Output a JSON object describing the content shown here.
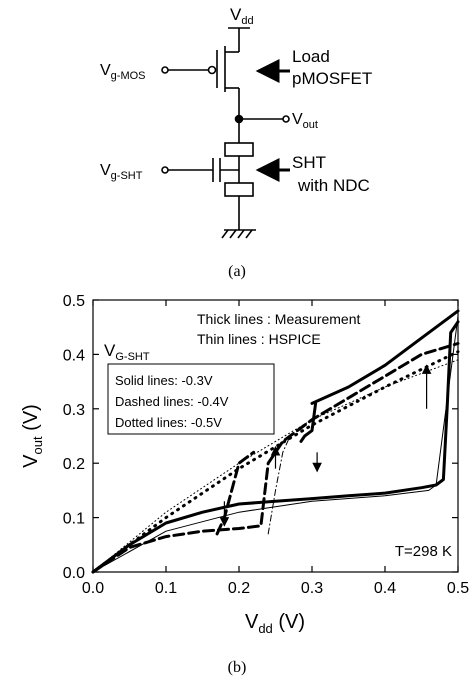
{
  "circuit": {
    "vdd": "V",
    "vdd_sub": "dd",
    "vgmos": "V",
    "vgmos_sub": "g-MOS",
    "load_line1": "Load",
    "load_line2": "pMOSFET",
    "vout": "V",
    "vout_sub": "out",
    "vgsht": "V",
    "vgsht_sub": "g-SHT",
    "sht_line1": "SHT",
    "sht_line2": "with NDC"
  },
  "caption_a": "(a)",
  "caption_b": "(b)",
  "chart_data": {
    "type": "line",
    "xlabel": "V",
    "xlabel_sub": "dd",
    "xlabel_unit": " (V)",
    "ylabel": "V",
    "ylabel_sub": "out",
    "ylabel_unit": " (V)",
    "xlim": [
      0,
      0.5
    ],
    "ylim": [
      0,
      0.5
    ],
    "xticks": [
      "0.0",
      "0.1",
      "0.2",
      "0.3",
      "0.4",
      "0.5"
    ],
    "yticks": [
      "0.0",
      "0.1",
      "0.2",
      "0.3",
      "0.4",
      "0.5"
    ],
    "legend_top_1": "Thick lines : Measurement",
    "legend_top_2": "Thin lines : HSPICE",
    "legend_title": "V",
    "legend_title_sub": "G-SHT",
    "legend_1": "Solid lines: -0.3V",
    "legend_2": "Dashed lines: -0.4V",
    "legend_3": "Dotted lines: -0.5V",
    "temperature": "T=298 K",
    "series": [
      {
        "style": "solid-thick",
        "x": [
          0,
          0.05,
          0.1,
          0.15,
          0.2,
          0.25,
          0.3,
          0.35,
          0.4,
          0.45,
          0.47,
          0.48,
          0.485,
          0.49,
          0.5
        ],
        "y": [
          0,
          0.05,
          0.09,
          0.11,
          0.125,
          0.13,
          0.135,
          0.14,
          0.145,
          0.155,
          0.16,
          0.17,
          0.3,
          0.44,
          0.46
        ]
      },
      {
        "style": "solid-thick",
        "x": [
          0.3,
          0.35,
          0.4,
          0.45,
          0.5
        ],
        "y": [
          0.31,
          0.34,
          0.38,
          0.43,
          0.48
        ]
      },
      {
        "style": "solid-thick",
        "x": [
          0.285,
          0.29,
          0.3,
          0.305
        ],
        "y": [
          0.24,
          0.25,
          0.26,
          0.31
        ]
      },
      {
        "style": "solid-thin",
        "x": [
          0,
          0.1,
          0.2,
          0.3,
          0.4,
          0.46,
          0.47,
          0.5
        ],
        "y": [
          0,
          0.075,
          0.11,
          0.13,
          0.14,
          0.15,
          0.16,
          0.47
        ]
      },
      {
        "style": "dashed-thick",
        "x": [
          0,
          0.05,
          0.1,
          0.15,
          0.2,
          0.23,
          0.24,
          0.26,
          0.3,
          0.35,
          0.4,
          0.45,
          0.5
        ],
        "y": [
          0,
          0.045,
          0.065,
          0.075,
          0.08,
          0.085,
          0.2,
          0.24,
          0.28,
          0.32,
          0.36,
          0.4,
          0.42
        ]
      },
      {
        "style": "dashed-thick",
        "x": [
          0.17,
          0.18,
          0.19,
          0.2,
          0.22
        ],
        "y": [
          0.07,
          0.1,
          0.15,
          0.2,
          0.22
        ]
      },
      {
        "style": "dashdot-thin",
        "x": [
          0.24,
          0.25,
          0.26,
          0.27
        ],
        "y": [
          0.07,
          0.15,
          0.22,
          0.25
        ]
      },
      {
        "style": "dotted-thick",
        "x": [
          0,
          0.1,
          0.2,
          0.3,
          0.4,
          0.5
        ],
        "y": [
          0,
          0.1,
          0.19,
          0.27,
          0.34,
          0.405
        ]
      },
      {
        "style": "dotted-thin",
        "x": [
          0,
          0.1,
          0.2,
          0.3,
          0.4,
          0.5
        ],
        "y": [
          0,
          0.11,
          0.2,
          0.28,
          0.34,
          0.39
        ]
      }
    ],
    "arrows": [
      {
        "x": 0.457,
        "y1": 0.3,
        "y2": 0.38
      },
      {
        "x": 0.307,
        "y1": 0.22,
        "y2": 0.185
      },
      {
        "x": 0.25,
        "y1": 0.19,
        "y2": 0.23
      },
      {
        "x": 0.18,
        "y1": 0.13,
        "y2": 0.085
      }
    ]
  }
}
